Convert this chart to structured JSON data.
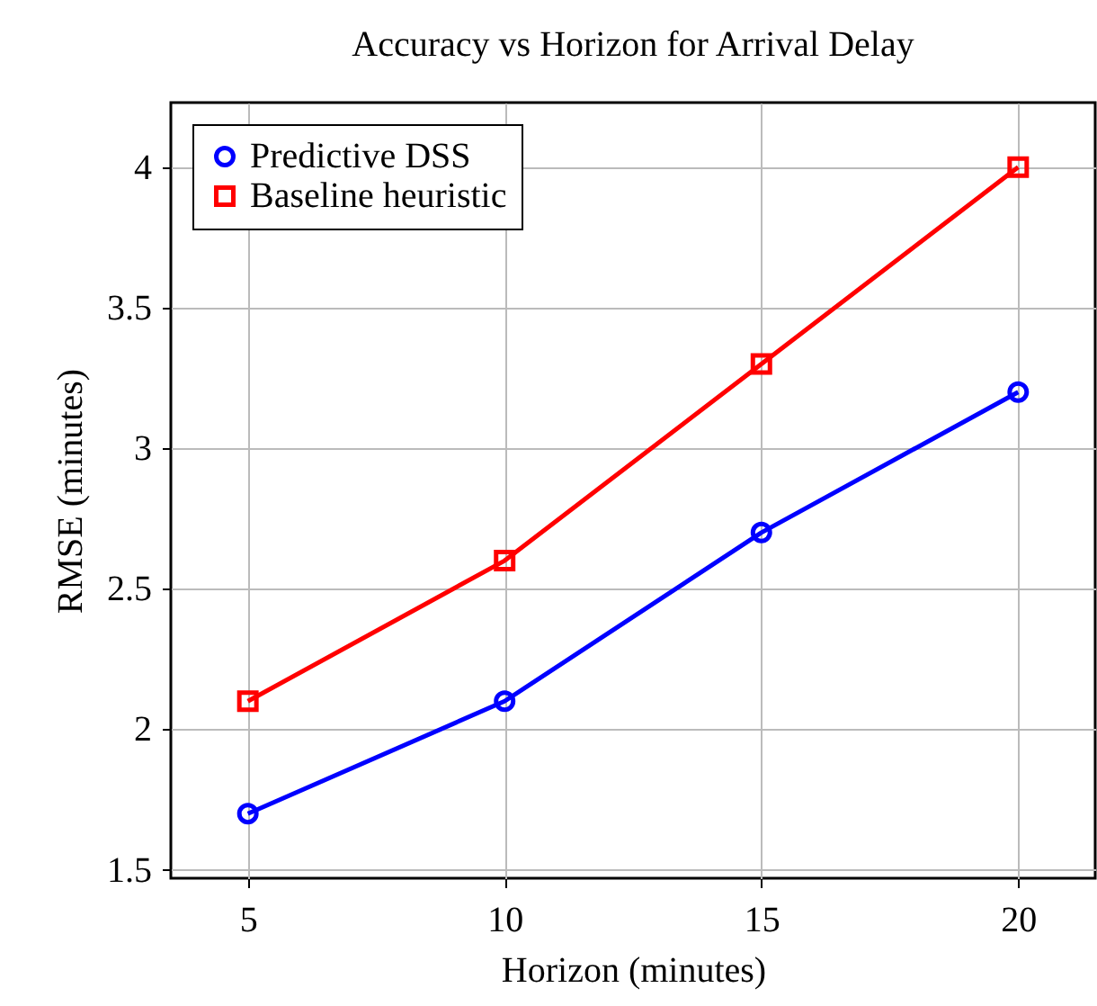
{
  "chart_data": {
    "type": "line",
    "title": "Accuracy vs Horizon for Arrival Delay",
    "xlabel": "Horizon (minutes)",
    "ylabel": "RMSE (minutes)",
    "x": [
      5,
      10,
      15,
      20
    ],
    "series": [
      {
        "name": "Predictive DSS",
        "color": "#0000ff",
        "marker": "circle",
        "values": [
          1.7,
          2.1,
          2.7,
          3.2
        ]
      },
      {
        "name": "Baseline heuristic",
        "color": "#ff0000",
        "marker": "square",
        "values": [
          2.1,
          2.6,
          3.3,
          4.0
        ]
      }
    ],
    "xlim": [
      3.5,
      21.5
    ],
    "xticks": [
      5,
      10,
      15,
      20
    ],
    "ylim": [
      1.47,
      4.23
    ],
    "yticks": [
      1.5,
      2,
      2.5,
      3,
      3.5,
      4
    ],
    "grid": true,
    "legend": "top left",
    "line_style": "solid"
  }
}
